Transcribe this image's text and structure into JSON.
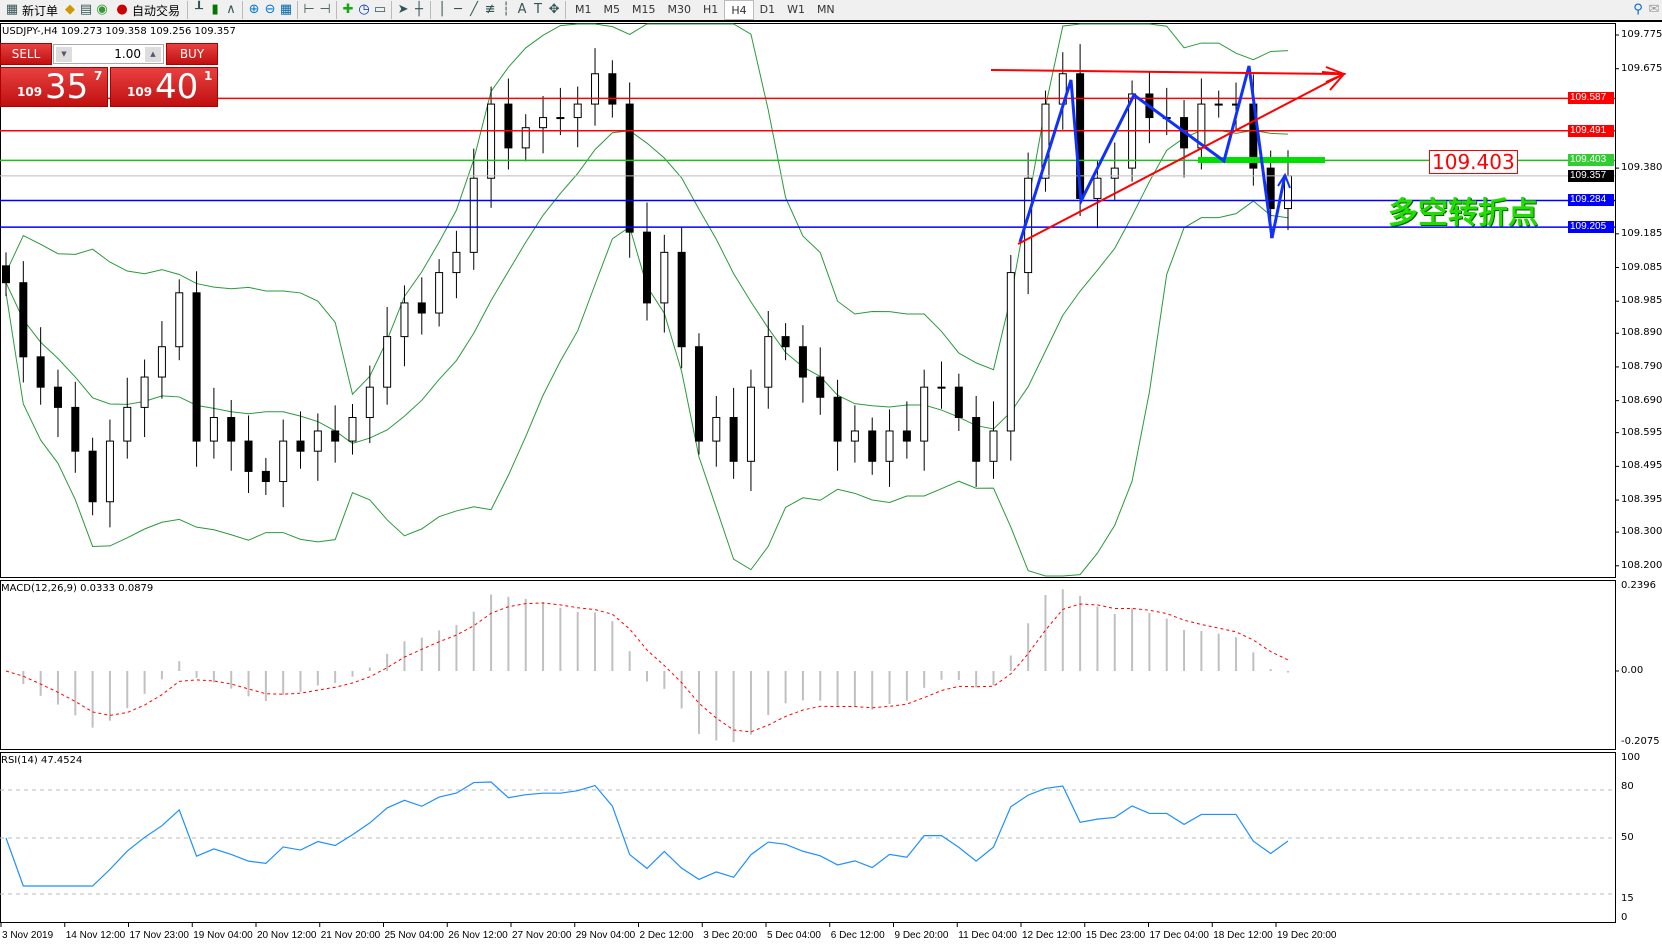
{
  "toolbar": {
    "new_order": "新订单",
    "auto_trading": "自动交易",
    "timeframes": [
      "M1",
      "M5",
      "M15",
      "M30",
      "H1",
      "H4",
      "D1",
      "W1",
      "MN"
    ],
    "active_timeframe": "H4",
    "icons": [
      "new-order-icon",
      "navigator-icon",
      "terminal-icon",
      "signals-icon",
      "auto-trading-icon",
      "bar-chart-icon",
      "candlestick-icon",
      "line-chart-icon",
      "zoom-in-icon",
      "zoom-out-icon",
      "tile-windows-icon",
      "chart-shift-icon",
      "autoscroll-icon",
      "indicators-icon",
      "periods-icon",
      "templates-icon",
      "cursor-icon",
      "crosshair-icon",
      "vertical-line-icon",
      "horizontal-line-icon",
      "trendline-icon",
      "fibonacci-icon",
      "fibo-fan-icon",
      "text-icon",
      "text-label-icon",
      "arrows-icon"
    ]
  },
  "chart": {
    "header": "USDJPY-,H4  109.273 109.358 109.256 109.357",
    "price_axis": [
      "109.775",
      "109.675",
      "109.380",
      "109.185",
      "109.085",
      "108.985",
      "108.890",
      "108.790",
      "108.690",
      "108.595",
      "108.495",
      "108.395",
      "108.300",
      "108.200"
    ],
    "hlines": [
      {
        "price": "109.587",
        "color": "#ff0000"
      },
      {
        "price": "109.491",
        "color": "#ff0000"
      },
      {
        "price": "109.403",
        "color": "#22bb22"
      },
      {
        "price": "109.357",
        "color": "#000000"
      },
      {
        "price": "109.284",
        "color": "#0000ff"
      },
      {
        "price": "109.205",
        "color": "#0000ff"
      }
    ],
    "annotation_price": "109.403",
    "annotation_text": "多空转折点",
    "closes": [
      109.04,
      108.82,
      108.73,
      108.67,
      108.54,
      108.39,
      108.57,
      108.67,
      108.76,
      108.85,
      109.01,
      108.57,
      108.64,
      108.57,
      108.48,
      108.45,
      108.57,
      108.54,
      108.6,
      108.57,
      108.64,
      108.73,
      108.88,
      108.98,
      108.95,
      109.07,
      109.13,
      109.35,
      109.57,
      109.44,
      109.5,
      109.53,
      109.53,
      109.57,
      109.66,
      109.57,
      109.19,
      108.98,
      109.13,
      108.85,
      108.57,
      108.64,
      108.51,
      108.73,
      108.88,
      108.85,
      108.76,
      108.7,
      108.57,
      108.6,
      108.51,
      108.6,
      108.57,
      108.73,
      108.73,
      108.64,
      108.51,
      108.6,
      109.07,
      109.35,
      109.57,
      109.66,
      109.29,
      109.35,
      109.38,
      109.6,
      109.53,
      109.53,
      109.44,
      109.57,
      109.57,
      109.57,
      109.38,
      109.26,
      109.357
    ]
  },
  "trade": {
    "sell_label": "SELL",
    "buy_label": "BUY",
    "lots": "1.00",
    "sell_big": "109",
    "sell_main": "35",
    "sell_sup": "7",
    "buy_big": "109",
    "buy_main": "40",
    "buy_sup": "1"
  },
  "macd": {
    "label": "MACD(12,26,9) 0.0333 0.0879",
    "axis": [
      "0.2396",
      "0.00",
      "-0.2075"
    ]
  },
  "rsi": {
    "label": "RSI(14) 47.4524",
    "axis": [
      "100",
      "80",
      "50",
      "15",
      "0"
    ],
    "levels": [
      80,
      50,
      15
    ]
  },
  "time_axis": [
    "3 Nov 2019",
    "14 Nov 12:00",
    "17 Nov 23:00",
    "19 Nov 04:00",
    "20 Nov 12:00",
    "21 Nov 20:00",
    "25 Nov 04:00",
    "26 Nov 12:00",
    "27 Nov 20:00",
    "29 Nov 04:00",
    "2 Dec 12:00",
    "3 Dec 20:00",
    "5 Dec 04:00",
    "6 Dec 12:00",
    "9 Dec 20:00",
    "11 Dec 04:00",
    "12 Dec 12:00",
    "15 Dec 23:00",
    "17 Dec 04:00",
    "18 Dec 12:00",
    "19 Dec 20:00"
  ]
}
